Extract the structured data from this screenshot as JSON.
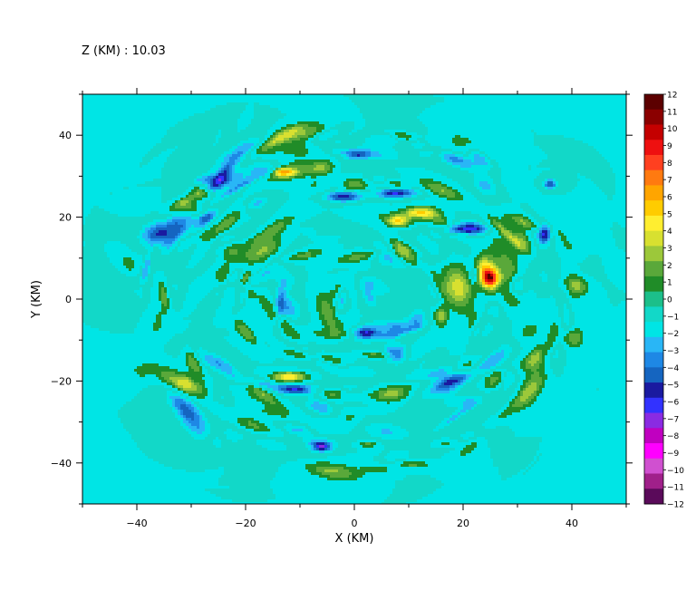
{
  "chart_data": {
    "type": "heatmap",
    "title": "Z (KM) : 10.03",
    "xlabel": "X (KM)",
    "ylabel": "Y (KM)",
    "xlim": [
      -50,
      50
    ],
    "ylim": [
      -50,
      50
    ],
    "x_ticks": [
      -40,
      -20,
      0,
      20,
      40
    ],
    "y_ticks": [
      -40,
      -20,
      0,
      20,
      40
    ],
    "colorbar": {
      "levels": [
        12,
        11,
        10,
        9,
        8,
        7,
        6,
        5,
        4,
        3,
        2,
        1,
        0,
        -1,
        -2,
        -3,
        -4,
        -5,
        -6,
        -7,
        -8,
        -9,
        -10,
        -11,
        -12
      ],
      "colors": [
        "#5c0000",
        "#8b0000",
        "#c40000",
        "#ee1010",
        "#ff4020",
        "#ff7a10",
        "#ffa500",
        "#ffcc00",
        "#ffee30",
        "#d8e030",
        "#9cc83a",
        "#5aa83a",
        "#208c28",
        "#1cbf8a",
        "#12d8c8",
        "#00e5e5",
        "#29b6f6",
        "#1e88e5",
        "#1565c0",
        "#1a1aa0",
        "#3232ff",
        "#8a2be2",
        "#c000c0",
        "#ff00ff",
        "#d050d0",
        "#a0208a",
        "#5a0a5a"
      ]
    },
    "background_value": 0,
    "features": [
      {
        "x": 25,
        "y": 5,
        "value": 9,
        "sx": 1.5,
        "sy": 2.2
      },
      {
        "x": 24,
        "y": 7,
        "value": 6,
        "sx": 2.2,
        "sy": 3.5
      },
      {
        "x": 7,
        "y": 26,
        "value": -7,
        "sx": 4,
        "sy": 1.2
      },
      {
        "x": -2,
        "y": 25,
        "value": -6,
        "sx": 3,
        "sy": 1.2
      },
      {
        "x": 12,
        "y": 21,
        "value": 6,
        "sx": 3,
        "sy": 1.4
      },
      {
        "x": 8,
        "y": 19,
        "value": 5,
        "sx": 2,
        "sy": 1.5
      },
      {
        "x": 20,
        "y": 17,
        "value": -6,
        "sx": 4,
        "sy": 1.2
      },
      {
        "x": -13,
        "y": 31,
        "value": 5,
        "sx": 2,
        "sy": 1
      },
      {
        "x": -12,
        "y": -19,
        "value": 6,
        "sx": 3,
        "sy": 1.2
      },
      {
        "x": -11,
        "y": -22,
        "value": -5,
        "sx": 3,
        "sy": 1.2
      },
      {
        "x": 35,
        "y": 16,
        "value": -6,
        "sx": 1,
        "sy": 2
      },
      {
        "x": 36,
        "y": 28,
        "value": -5,
        "sx": 1.2,
        "sy": 1.2
      },
      {
        "x": -6,
        "y": -36,
        "value": -5,
        "sx": 1.5,
        "sy": 1
      },
      {
        "x": 16,
        "y": -4,
        "value": 4,
        "sx": 1.2,
        "sy": 2.5
      },
      {
        "x": 22,
        "y": 6,
        "value": -4,
        "sx": 1.2,
        "sy": 2.2
      },
      {
        "x": 0,
        "y": 28,
        "value": 3,
        "sx": 2,
        "sy": 1.5
      },
      {
        "x": -30,
        "y": 22,
        "value": 3,
        "sx": 2,
        "sy": 1.5
      },
      {
        "x": 30,
        "y": 3,
        "value": -3,
        "sx": 1.5,
        "sy": 2.5
      }
    ]
  }
}
